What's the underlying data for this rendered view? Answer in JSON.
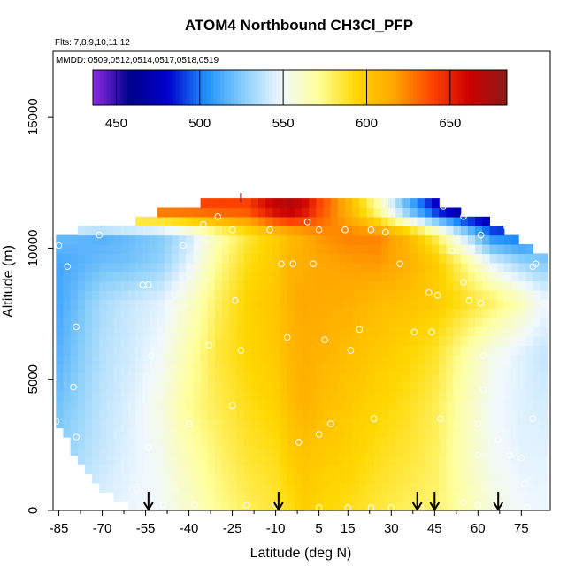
{
  "chart_data": {
    "type": "heatmap",
    "title": "ATOM4 Northbound CH3Cl_PFP",
    "subtitle_flights": "Flts: 7,8,9,10,11,12",
    "subtitle_dates": "MMDD: 0509,0512,0514,0517,0518,0519",
    "xlabel": "Latitude (deg N)",
    "ylabel": "Altitude (m)",
    "xlim": [
      -87,
      85
    ],
    "ylim": [
      0,
      17500
    ],
    "x_ticks": [
      -85,
      -70,
      -55,
      -40,
      -25,
      -10,
      5,
      15,
      30,
      45,
      60,
      75
    ],
    "x_minor_ticks": [
      -77.5,
      -62.5,
      -47.5,
      -32.5,
      -17.5,
      -2.5,
      22.5,
      37.5,
      52.5,
      67.5
    ],
    "y_ticks": [
      0,
      5000,
      10000,
      15000
    ],
    "colorbar": {
      "ticks": [
        450,
        500,
        550,
        600,
        650
      ],
      "range": [
        436,
        684
      ],
      "colors": [
        "#8a2be2",
        "#00008b",
        "#0000cd",
        "#1e90ff",
        "#87cefa",
        "#f0f8ff",
        "#ffff99",
        "#ffd700",
        "#ffa500",
        "#ff4500",
        "#cc0000",
        "#8b1a1a"
      ]
    },
    "field": {
      "lat_grid": [
        -85,
        -70,
        -60,
        -50,
        -40,
        -30,
        -20,
        -10,
        -5,
        0,
        5,
        15,
        25,
        35,
        45,
        55,
        65,
        75,
        82
      ],
      "alt_grid": [
        0,
        2000,
        4000,
        6000,
        8000,
        9500,
        10500,
        11500
      ],
      "values": [
        [
          540,
          545,
          548,
          550,
          560,
          572,
          580,
          586,
          590,
          598,
          594,
          590,
          585,
          580,
          578,
          568,
          556,
          550,
          548
        ],
        [
          528,
          540,
          546,
          552,
          566,
          577,
          586,
          590,
          598,
          602,
          600,
          596,
          590,
          586,
          580,
          565,
          552,
          546,
          546
        ],
        [
          522,
          538,
          545,
          555,
          572,
          582,
          590,
          596,
          605,
          610,
          606,
          600,
          595,
          590,
          582,
          566,
          550,
          545,
          543
        ],
        [
          516,
          536,
          542,
          550,
          568,
          585,
          594,
          600,
          608,
          612,
          610,
          605,
          600,
          595,
          588,
          570,
          553,
          545,
          540
        ],
        [
          512,
          533,
          540,
          545,
          560,
          580,
          595,
          602,
          610,
          615,
          614,
          612,
          606,
          604,
          600,
          590,
          580,
          565,
          550
        ],
        [
          512,
          520,
          522,
          528,
          546,
          572,
          590,
          600,
          610,
          612,
          615,
          618,
          620,
          612,
          600,
          575,
          545,
          530,
          525
        ],
        [
          520,
          515,
          520,
          525,
          540,
          565,
          585,
          598,
          606,
          612,
          620,
          625,
          625,
          610,
          582,
          540,
          500,
          495,
          510
        ],
        [
          null,
          null,
          null,
          null,
          null,
          null,
          640,
          665,
          670,
          660,
          640,
          610,
          570,
          520,
          480,
          455,
          448,
          450,
          null
        ]
      ]
    },
    "top_alt_by_lat": {
      "lat": [
        -85,
        -70,
        -60,
        -50,
        -40,
        -32,
        -25,
        -10,
        5,
        15,
        25,
        35,
        45,
        55,
        65,
        75,
        82
      ],
      "alt": [
        10500,
        10900,
        10900,
        11400,
        11400,
        11900,
        11900,
        11900,
        11900,
        11900,
        11900,
        11900,
        11800,
        11300,
        11000,
        10200,
        9800
      ]
    },
    "bottom_alt_by_lat": {
      "lat": [
        -85,
        -80,
        -75,
        -70,
        -65,
        -60,
        -55,
        -50,
        -40,
        82
      ],
      "alt": [
        3200,
        2200,
        1500,
        900,
        400,
        150,
        0,
        0,
        0,
        0
      ]
    },
    "sample_points": [
      {
        "lat": -85,
        "alt": 10100
      },
      {
        "lat": -82,
        "alt": 9300
      },
      {
        "lat": -79,
        "alt": 7000
      },
      {
        "lat": -80,
        "alt": 4700
      },
      {
        "lat": -79,
        "alt": 2800
      },
      {
        "lat": -80,
        "alt": 1300
      },
      {
        "lat": -86,
        "alt": 3400
      },
      {
        "lat": -71,
        "alt": 10500
      },
      {
        "lat": -56,
        "alt": 8600
      },
      {
        "lat": -54,
        "alt": 8600
      },
      {
        "lat": -53,
        "alt": 5900
      },
      {
        "lat": -54,
        "alt": 2400
      },
      {
        "lat": -58,
        "alt": 800
      },
      {
        "lat": -49,
        "alt": 200
      },
      {
        "lat": -52,
        "alt": 100
      },
      {
        "lat": -42,
        "alt": 10100
      },
      {
        "lat": -40,
        "alt": 3300
      },
      {
        "lat": -38,
        "alt": 200
      },
      {
        "lat": -35,
        "alt": 10900
      },
      {
        "lat": -30,
        "alt": 11200
      },
      {
        "lat": -33,
        "alt": 6300
      },
      {
        "lat": -25,
        "alt": 10700
      },
      {
        "lat": -24,
        "alt": 8000
      },
      {
        "lat": -22,
        "alt": 6100
      },
      {
        "lat": -25,
        "alt": 4000
      },
      {
        "lat": -20,
        "alt": 200
      },
      {
        "lat": -12,
        "alt": 10700
      },
      {
        "lat": -10,
        "alt": 200
      },
      {
        "lat": -8,
        "alt": 9400
      },
      {
        "lat": -4,
        "alt": 9400
      },
      {
        "lat": -6,
        "alt": 6600
      },
      {
        "lat": -2,
        "alt": 2600
      },
      {
        "lat": 1,
        "alt": 11000
      },
      {
        "lat": 3,
        "alt": 9400
      },
      {
        "lat": 5,
        "alt": 10700
      },
      {
        "lat": 7,
        "alt": 6500
      },
      {
        "lat": 9,
        "alt": 3300
      },
      {
        "lat": 5,
        "alt": 2900
      },
      {
        "lat": 14,
        "alt": 10700
      },
      {
        "lat": 16,
        "alt": 6100
      },
      {
        "lat": 19,
        "alt": 6900
      },
      {
        "lat": 23,
        "alt": 10700
      },
      {
        "lat": 28,
        "alt": 10600
      },
      {
        "lat": 33,
        "alt": 9400
      },
      {
        "lat": 24,
        "alt": 3500
      },
      {
        "lat": 38,
        "alt": 6800
      },
      {
        "lat": 46,
        "alt": 8200
      },
      {
        "lat": 43,
        "alt": 8300
      },
      {
        "lat": 44,
        "alt": 6800
      },
      {
        "lat": 47,
        "alt": 3500
      },
      {
        "lat": 51,
        "alt": 9900
      },
      {
        "lat": 55,
        "alt": 8700
      },
      {
        "lat": 57,
        "alt": 8000
      },
      {
        "lat": 61,
        "alt": 7900
      },
      {
        "lat": 55,
        "alt": 11200
      },
      {
        "lat": 61,
        "alt": 10500
      },
      {
        "lat": 70,
        "alt": 10800
      },
      {
        "lat": 76,
        "alt": 10900
      },
      {
        "lat": 62,
        "alt": 5900
      },
      {
        "lat": 62,
        "alt": 4600
      },
      {
        "lat": 60,
        "alt": 3300
      },
      {
        "lat": 60,
        "alt": 2100
      },
      {
        "lat": 67,
        "alt": 2700
      },
      {
        "lat": 71,
        "alt": 2100
      },
      {
        "lat": 75,
        "alt": 2000
      },
      {
        "lat": 79,
        "alt": 9300
      },
      {
        "lat": 80,
        "alt": 9400
      },
      {
        "lat": 79,
        "alt": 3500
      },
      {
        "lat": 76,
        "alt": 1000
      },
      {
        "lat": 67,
        "alt": 300
      },
      {
        "lat": 60,
        "alt": 200
      },
      {
        "lat": 77,
        "alt": 100
      },
      {
        "lat": 55,
        "alt": 300
      },
      {
        "lat": 40,
        "alt": 100
      },
      {
        "lat": 30,
        "alt": 100
      },
      {
        "lat": 23,
        "alt": 100
      },
      {
        "lat": 15,
        "alt": 100
      },
      {
        "lat": 5,
        "alt": 100
      },
      {
        "lat": 48,
        "alt": 11600
      }
    ],
    "arrows_lat": [
      -54,
      -9,
      39,
      45,
      67
    ],
    "tick_mark_lat": -22
  }
}
